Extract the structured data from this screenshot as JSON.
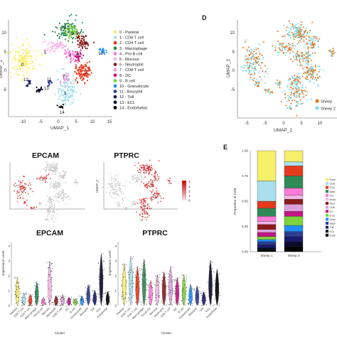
{
  "panels": {
    "d": "D",
    "e": "E"
  },
  "umap": {
    "x_label": "UMAP_1",
    "y_label": "UMAP_2",
    "x_ticks": [
      "-10",
      "-5",
      "0",
      "5",
      "10",
      "15"
    ],
    "y_ticks": [
      "10",
      "5",
      "0",
      "-5"
    ],
    "fp_x_ticks": [
      "-10",
      "-5",
      "0",
      "5",
      "10",
      "15"
    ],
    "fp_y_ticks": [
      "10",
      "5",
      "0",
      "-5",
      "-10"
    ]
  },
  "clusters": [
    {
      "id": "0",
      "label": "0 - Parietal",
      "color": "#f7f06a"
    },
    {
      "id": "1",
      "label": "1 - CD8 T cell",
      "color": "#a8e0ee"
    },
    {
      "id": "2",
      "label": "2 - CD4 T cell",
      "color": "#e63a1e"
    },
    {
      "id": "3",
      "label": "3 - Macrophage",
      "color": "#2e8b57"
    },
    {
      "id": "4",
      "label": "4 - Pre-B cell",
      "color": "#ff7ad8"
    },
    {
      "id": "5",
      "label": "5 - Mucous",
      "color": "#f2b6e6"
    },
    {
      "id": "6",
      "label": "6 - Neutrophil",
      "color": "#8b1a1a"
    },
    {
      "id": "7",
      "label": "7 - CD8 T cell",
      "color": "#dda0dd"
    },
    {
      "id": "8",
      "label": "8 - DC",
      "color": "#c71585"
    },
    {
      "id": "9",
      "label": "9 - B cell",
      "color": "#7cd33a"
    },
    {
      "id": "10",
      "label": "10 - Granulocyte",
      "color": "#1e90ff"
    },
    {
      "id": "11",
      "label": "11 - Basophil",
      "color": "#2c3e8f"
    },
    {
      "id": "12",
      "label": "12 - Tuft",
      "color": "#1a1a6e"
    },
    {
      "id": "13",
      "label": "13 - ECL",
      "color": "#0a0a2a"
    },
    {
      "id": "14",
      "label": "14 - Endothelial",
      "color": "#000000"
    }
  ],
  "sheep_legend": [
    {
      "label": "Sheep",
      "color": "#e8751a"
    },
    {
      "label": "Sheep 2",
      "color": "#7fdde8"
    }
  ],
  "feature_plots": [
    {
      "gene": "EPCAM"
    },
    {
      "gene": "PTPRC"
    }
  ],
  "feature_scale": [
    "4",
    "3",
    "2",
    "1",
    "0"
  ],
  "violin": {
    "y_label": "Expression Level",
    "x_label": "Cluster",
    "genes": [
      "EPCAM",
      "PTPRC"
    ],
    "categories": [
      "Parietal",
      "CD8 T cell",
      "CD4 T cell",
      "Macrophage",
      "Pre-B cell",
      "Mucous",
      "Neutrophil",
      "CD8 T cell",
      "DC",
      "B cell",
      "Granulocyte",
      "Basophil",
      "Tuft",
      "ECL",
      "Endothelial"
    ],
    "y_ticks": [
      "4",
      "3",
      "2",
      "1",
      "0"
    ]
  },
  "chart_data": {
    "type": "bar",
    "ylabel": "Proportion of Cells",
    "categories": [
      "Sheep 1",
      "Sheep 2"
    ],
    "ylim": [
      0,
      1
    ],
    "yticks": [
      "0.00",
      "0.25",
      "0.50",
      "0.75",
      "1.00"
    ],
    "stack_order": [
      "0",
      "1",
      "2",
      "3",
      "4",
      "5",
      "6",
      "7",
      "8",
      "9",
      "10",
      "11",
      "12",
      "13",
      "14"
    ],
    "series": [
      {
        "name": "Parietal",
        "values": [
          0.3,
          0.11
        ]
      },
      {
        "name": "CD8 T cell",
        "values": [
          0.2,
          0.04
        ]
      },
      {
        "name": "CD4 T cell",
        "values": [
          0.07,
          0.1
        ]
      },
      {
        "name": "Macrophage",
        "values": [
          0.08,
          0.12
        ]
      },
      {
        "name": "Pre-B cell",
        "values": [
          0.05,
          0.07
        ]
      },
      {
        "name": "Mucous",
        "values": [
          0.03,
          0.04
        ]
      },
      {
        "name": "Neutrophil",
        "values": [
          0.05,
          0.05
        ]
      },
      {
        "name": "CD8 T cell",
        "values": [
          0.03,
          0.07
        ]
      },
      {
        "name": "DC",
        "values": [
          0.04,
          0.05
        ]
      },
      {
        "name": "B cell",
        "values": [
          0.03,
          0.09
        ]
      },
      {
        "name": "Granulocyte",
        "values": [
          0.02,
          0.06
        ]
      },
      {
        "name": "Basophil",
        "values": [
          0.03,
          0.05
        ]
      },
      {
        "name": "Tuft",
        "values": [
          0.03,
          0.05
        ]
      },
      {
        "name": "ECL",
        "values": [
          0.02,
          0.05
        ]
      },
      {
        "name": "Endothelial",
        "values": [
          0.02,
          0.05
        ]
      }
    ],
    "legend_labels": [
      "Parie",
      "CD8",
      "CD4",
      "Macr",
      "Pre-",
      "Muco",
      "Neut",
      "CD8",
      "DC",
      "B ce",
      "Gran",
      "Baso",
      "Tuft",
      "ECL",
      "Endo"
    ]
  }
}
